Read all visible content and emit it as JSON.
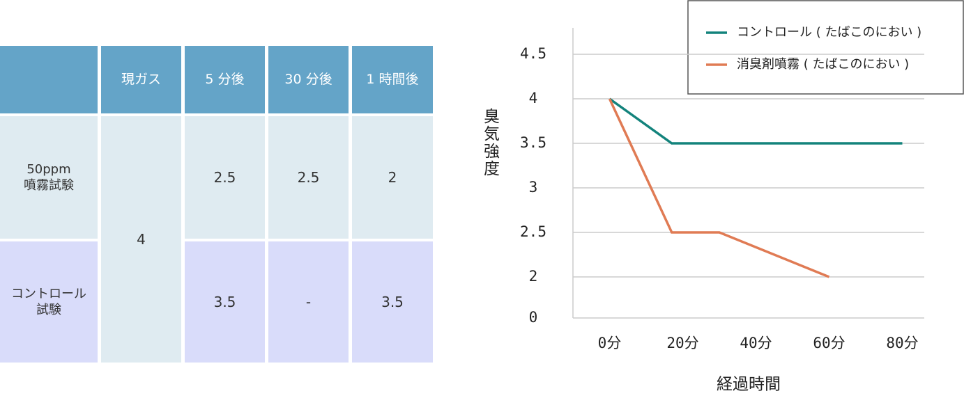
{
  "table": {
    "header": [
      "現ガス",
      "5 分後",
      "30 分後",
      "1 時間後"
    ],
    "gas": 4,
    "rows": [
      {
        "label": [
          "50ppm",
          "噴霧試験"
        ],
        "values": [
          2.5,
          2.5,
          2
        ]
      },
      {
        "label": [
          "コントロール",
          "試験"
        ],
        "values": [
          3.5,
          "-",
          3.5
        ]
      }
    ]
  },
  "chart_data": {
    "type": "line",
    "y_label": "臭気強度",
    "x_label": "経過時間",
    "xlim": [
      -10,
      86
    ],
    "xticks": [
      {
        "value": 0,
        "label": "0分"
      },
      {
        "value": 20,
        "label": "20分"
      },
      {
        "value": 40,
        "label": "40分"
      },
      {
        "value": 60,
        "label": "60分"
      },
      {
        "value": 80,
        "label": "80分"
      }
    ],
    "ylim": [
      0,
      4.5
    ],
    "yticks": [
      0,
      2,
      2.5,
      3,
      3.5,
      4,
      4.5
    ],
    "grid": true,
    "legend": "top-right",
    "series": [
      {
        "name": "コントロール ( たばこのにおい )",
        "color": "#13837c",
        "x": [
          0,
          17,
          80
        ],
        "values": [
          4,
          3.5,
          3.5
        ]
      },
      {
        "name": "消臭剤噴霧 ( たばこのにおい )",
        "color": "#e07b54",
        "x": [
          0,
          17,
          30,
          60
        ],
        "values": [
          4,
          2.5,
          2.5,
          2
        ]
      }
    ]
  }
}
